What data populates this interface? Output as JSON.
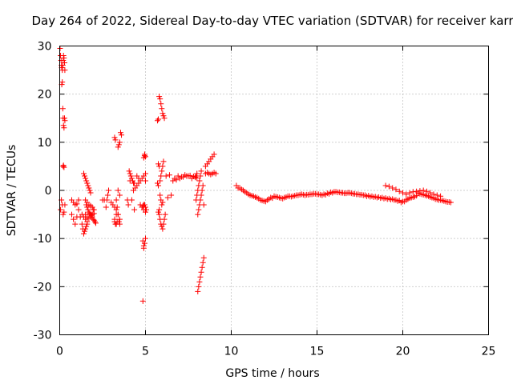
{
  "chart_data": {
    "type": "scatter",
    "title": "Day 264 of 2022, Sidereal Day-to-day VTEC variation (SDTVAR) for receiver karr",
    "xlabel": "GPS time / hours",
    "ylabel": "SDTVAR / TECUs",
    "xlim": [
      0,
      25
    ],
    "ylim": [
      -30,
      30
    ],
    "xticks": [
      "0",
      "5",
      "10",
      "15",
      "20",
      "25"
    ],
    "yticks": [
      "-30",
      "-20",
      "-10",
      "0",
      "10",
      "20",
      "30"
    ],
    "grid": true,
    "marker": "plus",
    "series_color": "#ff0000",
    "series": [
      {
        "name": "SDTVAR",
        "x": [
          0.02,
          0.05,
          0.08,
          0.1,
          0.12,
          0.15,
          0.18,
          0.2,
          0.22,
          0.25,
          0.28,
          0.3,
          0.12,
          0.15,
          0.18,
          0.2,
          0.22,
          0.25,
          0.28,
          0.3,
          0.2,
          0.22,
          0.25,
          0.1,
          0.15,
          0.05,
          0.2,
          0.25,
          0.3,
          0.7,
          0.8,
          0.9,
          1.0,
          1.1,
          0.7,
          0.8,
          0.9,
          1.0,
          1.1,
          1.2,
          1.3,
          1.35,
          1.4,
          1.45,
          1.5,
          1.55,
          1.6,
          1.3,
          1.4,
          1.5,
          1.6,
          1.4,
          1.45,
          1.5,
          1.55,
          1.6,
          1.65,
          1.7,
          1.75,
          1.8,
          1.5,
          1.6,
          1.7,
          1.8,
          1.9,
          1.95,
          2.0,
          1.5,
          1.6,
          1.7,
          1.8,
          1.9,
          2.0,
          1.55,
          1.6,
          1.65,
          1.7,
          1.75,
          1.8,
          1.85,
          1.9,
          1.95,
          2.0,
          2.05,
          2.1,
          2.5,
          2.6,
          2.7,
          2.75,
          2.8,
          2.85,
          3.0,
          3.1,
          3.2,
          3.3,
          3.4,
          3.5,
          3.2,
          3.25,
          3.3,
          3.35,
          3.4,
          3.45,
          3.5,
          3.55,
          3.6,
          3.2,
          3.25,
          3.3,
          3.35,
          3.4,
          3.45,
          3.5,
          3.2,
          3.3,
          3.4,
          3.5,
          3.95,
          4.0,
          4.05,
          4.1,
          4.15,
          4.2,
          4.25,
          4.3,
          4.35,
          4.1,
          4.2,
          4.3,
          4.4,
          4.5,
          4.6,
          4.7,
          4.8,
          4.9,
          5.0,
          4.5,
          4.6,
          4.7,
          4.8,
          4.9,
          5.0,
          4.35,
          4.8,
          4.85,
          4.9,
          4.95,
          5.0,
          4.85,
          4.9,
          4.95,
          5.0,
          5.05,
          4.85,
          4.9,
          4.95,
          5.0,
          4.9,
          4.95,
          5.0,
          5.7,
          5.75,
          5.8,
          5.85,
          5.9,
          5.95,
          6.0,
          6.05,
          6.1,
          5.7,
          5.75,
          5.8,
          5.85,
          5.9,
          5.95,
          6.0,
          6.05,
          6.1,
          6.15,
          5.75,
          5.8,
          5.85,
          5.9,
          5.95,
          6.0,
          6.05,
          5.75,
          5.8,
          5.85,
          5.9,
          5.95,
          6.0,
          6.3,
          6.5,
          6.7,
          6.9,
          7.1,
          7.3,
          7.5,
          7.7,
          7.9,
          6.2,
          6.4,
          6.6,
          6.8,
          7.0,
          7.2,
          7.4,
          7.6,
          7.8,
          8.0,
          7.95,
          8.0,
          8.05,
          8.1,
          8.15,
          8.2,
          8.25,
          8.3,
          8.35,
          8.4,
          7.95,
          8.0,
          8.05,
          8.1,
          8.15,
          8.2,
          8.25,
          8.05,
          8.1,
          8.15,
          8.2,
          8.25,
          8.3,
          8.35,
          8.4,
          8.5,
          8.6,
          8.7,
          8.8,
          8.9,
          9.0,
          9.1,
          8.5,
          8.6,
          8.7,
          8.8,
          8.9,
          9.0,
          10.3,
          10.5,
          10.7,
          10.9,
          11.1,
          11.3,
          11.5,
          11.7,
          11.9,
          12.1,
          12.3,
          12.5,
          12.7,
          12.9,
          13.1,
          13.3,
          13.5,
          13.7,
          13.9,
          14.1,
          14.3,
          14.5,
          14.7,
          14.9,
          15.1,
          15.3,
          15.5,
          15.7,
          15.9,
          16.1,
          16.3,
          16.5,
          16.7,
          16.9,
          17.1,
          17.3,
          17.5,
          17.7,
          17.9,
          18.1,
          18.3,
          18.5,
          18.7,
          18.9,
          19.1,
          19.3,
          19.5,
          19.7,
          19.9,
          20.1,
          20.3,
          20.5,
          20.7,
          20.9,
          21.1,
          21.3,
          21.5,
          21.7,
          21.9,
          22.1,
          22.3,
          22.5,
          22.7,
          22.8,
          10.4,
          10.6,
          10.8,
          11.0,
          11.2,
          11.4,
          11.6,
          11.8,
          12.0,
          12.2,
          12.4,
          12.6,
          12.8,
          13.0,
          13.2,
          13.4,
          13.6,
          13.8,
          14.0,
          14.2,
          14.4,
          14.6,
          14.8,
          15.0,
          15.2,
          15.4,
          15.6,
          15.8,
          16.0,
          16.2,
          16.4,
          16.6,
          16.8,
          17.0,
          17.2,
          17.4,
          17.6,
          17.8,
          18.0,
          18.2,
          18.4,
          18.6,
          18.8,
          19.0,
          19.2,
          19.4,
          19.6,
          19.8,
          20.0,
          20.2,
          20.4,
          20.6,
          20.8,
          21.0,
          21.2,
          21.4,
          21.6,
          21.8,
          22.0,
          22.2,
          22.4,
          22.6,
          19.0,
          19.2,
          19.4,
          19.6,
          19.8,
          20.0,
          20.2,
          20.4,
          20.6,
          20.8,
          21.0,
          21.2,
          21.4,
          21.6,
          21.8,
          22.0,
          22.2
        ],
        "y": [
          29.5,
          28,
          27,
          26,
          25.5,
          25,
          26,
          27,
          28,
          27.5,
          26.5,
          25,
          22,
          22.5,
          17,
          15,
          13.5,
          13,
          15,
          14.5,
          5,
          5.2,
          4.8,
          -2,
          -3,
          -4,
          -5,
          -4.5,
          -3,
          -2,
          -2.5,
          -3,
          -2.8,
          -2,
          -5,
          -6,
          -7,
          -5.5,
          -4,
          -5.5,
          -7,
          -8,
          -9,
          -8.5,
          -8,
          -7.5,
          -7,
          -5,
          -5.5,
          -6,
          -6.5,
          3.5,
          3,
          2.5,
          2,
          1.5,
          1,
          0.5,
          0,
          -0.5,
          -2,
          -2.5,
          -3,
          -3.2,
          -3.5,
          -4,
          -4,
          -5,
          -5.5,
          -5.8,
          -5.5,
          -5,
          -4.8,
          -3,
          -3.5,
          -4,
          -4.5,
          -4.8,
          -5,
          -5.2,
          -5.5,
          -6,
          -6.2,
          -6.5,
          -6.8,
          -2,
          -2,
          -3.5,
          -2,
          -1,
          0,
          -2.5,
          -3,
          -3.5,
          -4,
          -5,
          -6,
          -6.5,
          -7,
          -7,
          -6.5,
          9,
          9.5,
          10,
          12,
          11.5,
          11,
          10.5,
          -2,
          -3.5,
          -5,
          -6.5,
          -7,
          -6,
          -5,
          0,
          -1,
          -2,
          -3,
          4,
          3.5,
          3,
          2.5,
          2,
          1.5,
          1.5,
          2,
          -2,
          0,
          0.5,
          1,
          1.5,
          2,
          2.5,
          3,
          3.5,
          3,
          2.5,
          -3,
          -3.5,
          -4,
          -4.5,
          -4,
          -3.5,
          -23,
          -12,
          -11,
          -10,
          -10.5,
          -11.5,
          -3,
          -3.5,
          -4,
          -3.2,
          -3,
          7.5,
          7,
          6.8,
          7.2,
          2,
          1.5,
          1,
          19.5,
          19,
          18,
          17,
          16,
          15.5,
          15,
          14.5,
          14.8,
          -5,
          -6,
          -7,
          -7.5,
          -8,
          -7,
          -6,
          -5,
          -4.5,
          -4,
          2,
          3,
          4,
          5,
          6,
          5.5,
          5,
          -1,
          -2,
          -3,
          -2.5,
          -1.5,
          -1,
          2.5,
          3,
          2.8,
          3.2,
          3,
          2.5,
          2.7,
          3,
          3.2,
          2,
          2.2,
          2.5,
          2.8,
          3,
          3.1,
          2.9,
          2.6,
          3,
          3.5,
          -5,
          -4,
          -3,
          -2,
          -1,
          0,
          1,
          -3,
          -2,
          -1,
          0,
          1,
          2,
          3,
          4,
          -21,
          -20,
          -19,
          -18,
          -17,
          -16,
          -15,
          -14,
          3.5,
          3.7,
          3.5,
          3.3,
          3.5,
          3.7,
          3.5,
          5,
          5.5,
          6,
          6.5,
          7,
          7.5,
          1,
          0.5,
          0,
          -0.5,
          -1,
          -1.2,
          -1.5,
          -2,
          -2.2,
          -2,
          -1.5,
          -1.2,
          -1.4,
          -1.6,
          -1.5,
          -1.2,
          -1.3,
          -1.1,
          -1,
          -0.8,
          -1,
          -0.9,
          -0.8,
          -0.7,
          -0.8,
          -1,
          -0.9,
          -0.7,
          -0.5,
          -0.3,
          -0.4,
          -0.5,
          -0.6,
          -0.5,
          -0.7,
          -0.8,
          -0.9,
          -1,
          -1.2,
          -1.3,
          -1.4,
          -1.5,
          -1.6,
          -1.7,
          -1.8,
          -1.9,
          -2,
          -2.2,
          -2.5,
          -2.3,
          -1.8,
          -1.5,
          -1.3,
          -0.5,
          -0.8,
          -1,
          -1.2,
          -1.5,
          -1.8,
          -2,
          -2.1,
          -2.3,
          -2.4,
          -2.5,
          0.5,
          0.2,
          -0.3,
          -0.8,
          -1.1,
          -1.4,
          -1.7,
          -2.1,
          -2.3,
          -1.8,
          -1.6,
          -1.3,
          -1.5,
          -1.7,
          -1.4,
          -1.2,
          -1.2,
          -1,
          -0.9,
          -0.9,
          -0.9,
          -0.8,
          -0.7,
          -0.8,
          -0.9,
          -0.8,
          -0.6,
          -0.4,
          -0.3,
          -0.4,
          -0.5,
          -0.6,
          -0.5,
          -0.6,
          -0.7,
          -0.8,
          -0.9,
          -1,
          -1.1,
          -1.2,
          -1.3,
          -1.4,
          -1.5,
          -1.6,
          -1.7,
          -1.8,
          -2,
          -2.1,
          -2.3,
          -2,
          -1.6,
          -1.4,
          -1.1,
          -0.7,
          -0.9,
          -1.1,
          -1.4,
          -1.6,
          -1.9,
          -2,
          -2.2,
          -2.4,
          1,
          0.8,
          0.5,
          0.2,
          -0.2,
          -0.5,
          -0.8,
          -0.5,
          -0.3,
          -0.2,
          -0.1,
          0,
          -0.2,
          -0.5,
          -0.8,
          -1,
          -1.2
        ]
      }
    ]
  }
}
